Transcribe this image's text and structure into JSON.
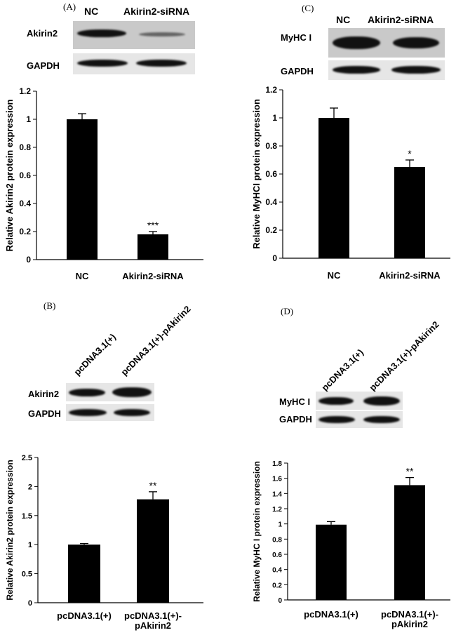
{
  "panels": [
    {
      "id": "A",
      "label": "(A)",
      "lanes": [
        "NC",
        "Akirin2-siRNA"
      ],
      "blots": [
        {
          "name": "Akirin2"
        },
        {
          "name": "GAPDH"
        }
      ],
      "chart_data": {
        "type": "bar",
        "categories": [
          "NC",
          "Akirin2-siRNA"
        ],
        "values": [
          1.0,
          0.18
        ],
        "errors": [
          0.04,
          0.02
        ],
        "significance": [
          "",
          "***"
        ],
        "title": "",
        "xlabel": "",
        "ylabel": "Relative Akirin2 protein expression",
        "ylim": [
          0,
          1.2
        ],
        "yticks": [
          0,
          0.2,
          0.4,
          0.6,
          0.8,
          1,
          1.2
        ],
        "grid": false,
        "bar_color": "#000000"
      }
    },
    {
      "id": "C",
      "label": "(C)",
      "lanes": [
        "NC",
        "Akirin2-siRNA"
      ],
      "blots": [
        {
          "name": "MyHC I"
        },
        {
          "name": "GAPDH"
        }
      ],
      "chart_data": {
        "type": "bar",
        "categories": [
          "NC",
          "Akirin2-siRNA"
        ],
        "values": [
          1.0,
          0.65
        ],
        "errors": [
          0.07,
          0.05
        ],
        "significance": [
          "",
          "*"
        ],
        "title": "",
        "xlabel": "",
        "ylabel": "Relative MyHCI protein expression",
        "ylim": [
          0,
          1.2
        ],
        "yticks": [
          0,
          0.2,
          0.4,
          0.6,
          0.8,
          1,
          1.2
        ],
        "grid": false,
        "bar_color": "#000000"
      }
    },
    {
      "id": "B",
      "label": "(B)",
      "lanes": [
        "pcDNA3.1(+)",
        "pcDNA3.1(+)-pAkirin2"
      ],
      "blots": [
        {
          "name": "Akirin2"
        },
        {
          "name": "GAPDH"
        }
      ],
      "chart_data": {
        "type": "bar",
        "categories": [
          "pcDNA3.1(+)",
          "pcDNA3.1(+)-pAkirin2"
        ],
        "category_lines": [
          [
            "pcDNA3.1(+)"
          ],
          [
            "pcDNA3.1(+)-",
            "pAkirin2"
          ]
        ],
        "values": [
          1.0,
          1.78
        ],
        "errors": [
          0.02,
          0.13
        ],
        "significance": [
          "",
          "**"
        ],
        "title": "",
        "xlabel": "",
        "ylabel": "Relative Akirin2 protein expression",
        "ylim": [
          0,
          2.5
        ],
        "yticks": [
          0,
          0.5,
          1,
          1.5,
          2,
          2.5
        ],
        "grid": false,
        "bar_color": "#000000"
      }
    },
    {
      "id": "D",
      "label": "(D)",
      "lanes": [
        "pcDNA3.1(+)",
        "pcDNA3.1(+)-pAkirin2"
      ],
      "blots": [
        {
          "name": "MyHC I"
        },
        {
          "name": "GAPDH"
        }
      ],
      "chart_data": {
        "type": "bar",
        "categories": [
          "pcDNA3.1(+)",
          "pcDNA3.1(+)-pAkirin2"
        ],
        "category_lines": [
          [
            "pcDNA3.1(+)"
          ],
          [
            "pcDNA3.1(+)-",
            "pAkirin2"
          ]
        ],
        "values": [
          0.99,
          1.51
        ],
        "errors": [
          0.04,
          0.1
        ],
        "significance": [
          "",
          "**"
        ],
        "title": "",
        "xlabel": "",
        "ylabel": "Relative MyHC I protein expression",
        "ylim": [
          0,
          1.8
        ],
        "yticks": [
          0,
          0.2,
          0.4,
          0.6,
          0.8,
          1,
          1.2,
          1.4,
          1.6,
          1.8
        ],
        "grid": false,
        "bar_color": "#000000"
      }
    }
  ]
}
